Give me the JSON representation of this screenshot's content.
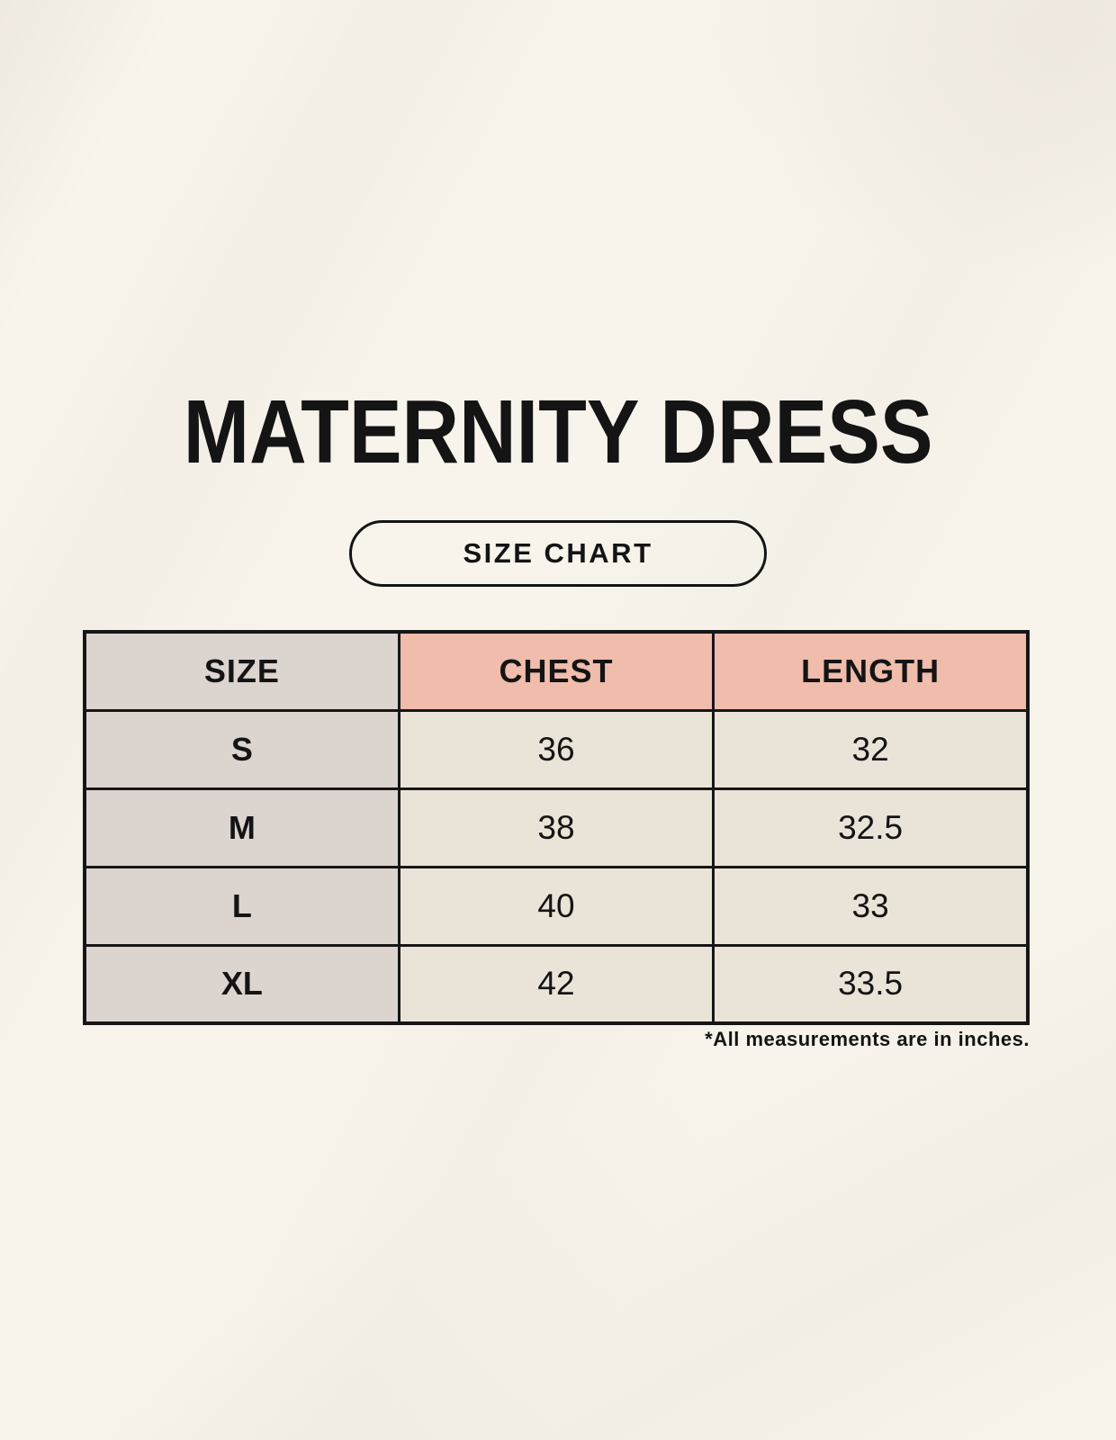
{
  "page": {
    "title": "MATERNITY DRESS",
    "badge_label": "SIZE CHART",
    "footnote": "*All measurements are in inches.",
    "colors": {
      "background": "#f8f4ec",
      "header_accent": "#f0bcab",
      "size_column": "#dcd4cf",
      "data_cell": "#eae3d7",
      "border": "#161616",
      "text": "#141414"
    }
  },
  "chart_data": {
    "type": "table",
    "title": "MATERNITY DRESS",
    "subtitle": "SIZE CHART",
    "columns": [
      "SIZE",
      "CHEST",
      "LENGTH"
    ],
    "rows": [
      [
        "S",
        "36",
        "32"
      ],
      [
        "M",
        "38",
        "32.5"
      ],
      [
        "L",
        "40",
        "33"
      ],
      [
        "XL",
        "42",
        "33.5"
      ]
    ],
    "units_note": "*All measurements are in inches.",
    "layout_hints": {
      "first_column_shaded": true,
      "measure_headers_accented": true,
      "grid": "solid black borders",
      "column_widths": "equal thirds"
    }
  }
}
